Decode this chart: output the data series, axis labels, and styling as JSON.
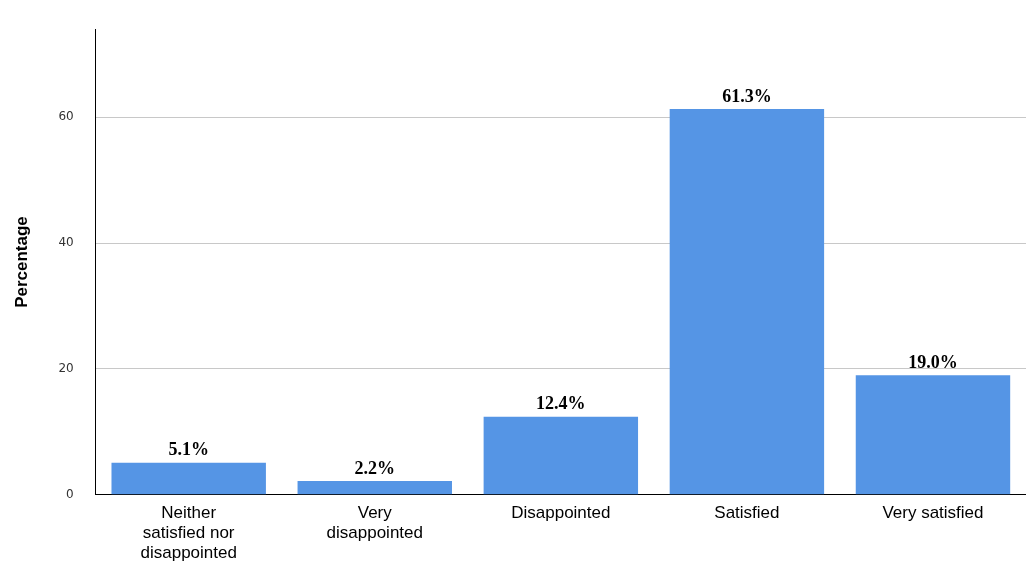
{
  "chart_data": {
    "type": "bar",
    "ylabel": "Percentage",
    "categories": [
      "Neither satisfied nor disappointed",
      "Very disappointed",
      "Disappointed",
      "Satisfied",
      "Very satisfied"
    ],
    "values": [
      5.1,
      2.2,
      12.4,
      61.3,
      19.0
    ],
    "value_labels": [
      "5.1%",
      "2.2%",
      "12.4%",
      "61.3%",
      "19.0%"
    ],
    "color": "#5595e5",
    "ylim": [
      0,
      74
    ],
    "yticks": [
      0,
      20,
      40,
      60
    ],
    "grid": "y",
    "legend": false
  }
}
